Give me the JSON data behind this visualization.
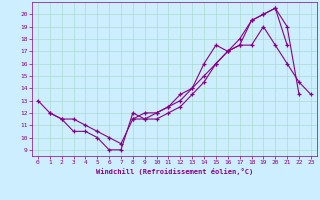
{
  "xlabel": "Windchill (Refroidissement éolien,°C)",
  "bg_color": "#cceeff",
  "grid_color": "#aaddcc",
  "line_color": "#880088",
  "xlim": [
    -0.5,
    23.5
  ],
  "ylim": [
    8.5,
    21.0
  ],
  "xticks": [
    0,
    1,
    2,
    3,
    4,
    5,
    6,
    7,
    8,
    9,
    10,
    11,
    12,
    13,
    14,
    15,
    16,
    17,
    18,
    19,
    20,
    21,
    22,
    23
  ],
  "yticks": [
    9,
    10,
    11,
    12,
    13,
    14,
    15,
    16,
    17,
    18,
    19,
    20
  ],
  "line1_x": [
    0,
    1,
    2,
    3,
    4,
    5,
    6,
    7,
    8,
    9,
    10,
    11,
    12,
    13,
    14,
    15,
    16,
    17,
    18,
    19,
    20,
    21,
    22,
    23
  ],
  "line1_y": [
    13.0,
    12.0,
    11.5,
    10.5,
    10.5,
    10.0,
    9.0,
    9.0,
    12.0,
    11.5,
    12.0,
    12.5,
    13.5,
    14.0,
    16.0,
    17.5,
    17.0,
    17.5,
    17.5,
    19.0,
    17.5,
    16.0,
    14.5,
    13.5
  ],
  "line2_x": [
    1,
    2,
    3,
    4,
    5,
    6,
    7,
    8,
    9,
    10,
    11,
    12,
    13,
    14,
    15,
    16,
    17,
    18,
    19,
    20,
    21,
    22
  ],
  "line2_y": [
    12.0,
    11.5,
    11.5,
    11.0,
    10.5,
    10.0,
    9.5,
    11.5,
    12.0,
    12.0,
    12.5,
    13.0,
    14.0,
    15.0,
    16.0,
    17.0,
    18.0,
    19.5,
    20.0,
    20.5,
    19.0,
    13.5
  ],
  "line3_x": [
    8,
    9,
    10,
    11,
    12,
    13,
    14,
    15,
    16,
    17,
    18,
    19,
    20,
    21
  ],
  "line3_y": [
    11.5,
    11.5,
    11.5,
    12.0,
    12.5,
    13.5,
    14.5,
    16.0,
    17.0,
    17.5,
    19.5,
    20.0,
    20.5,
    17.5
  ]
}
